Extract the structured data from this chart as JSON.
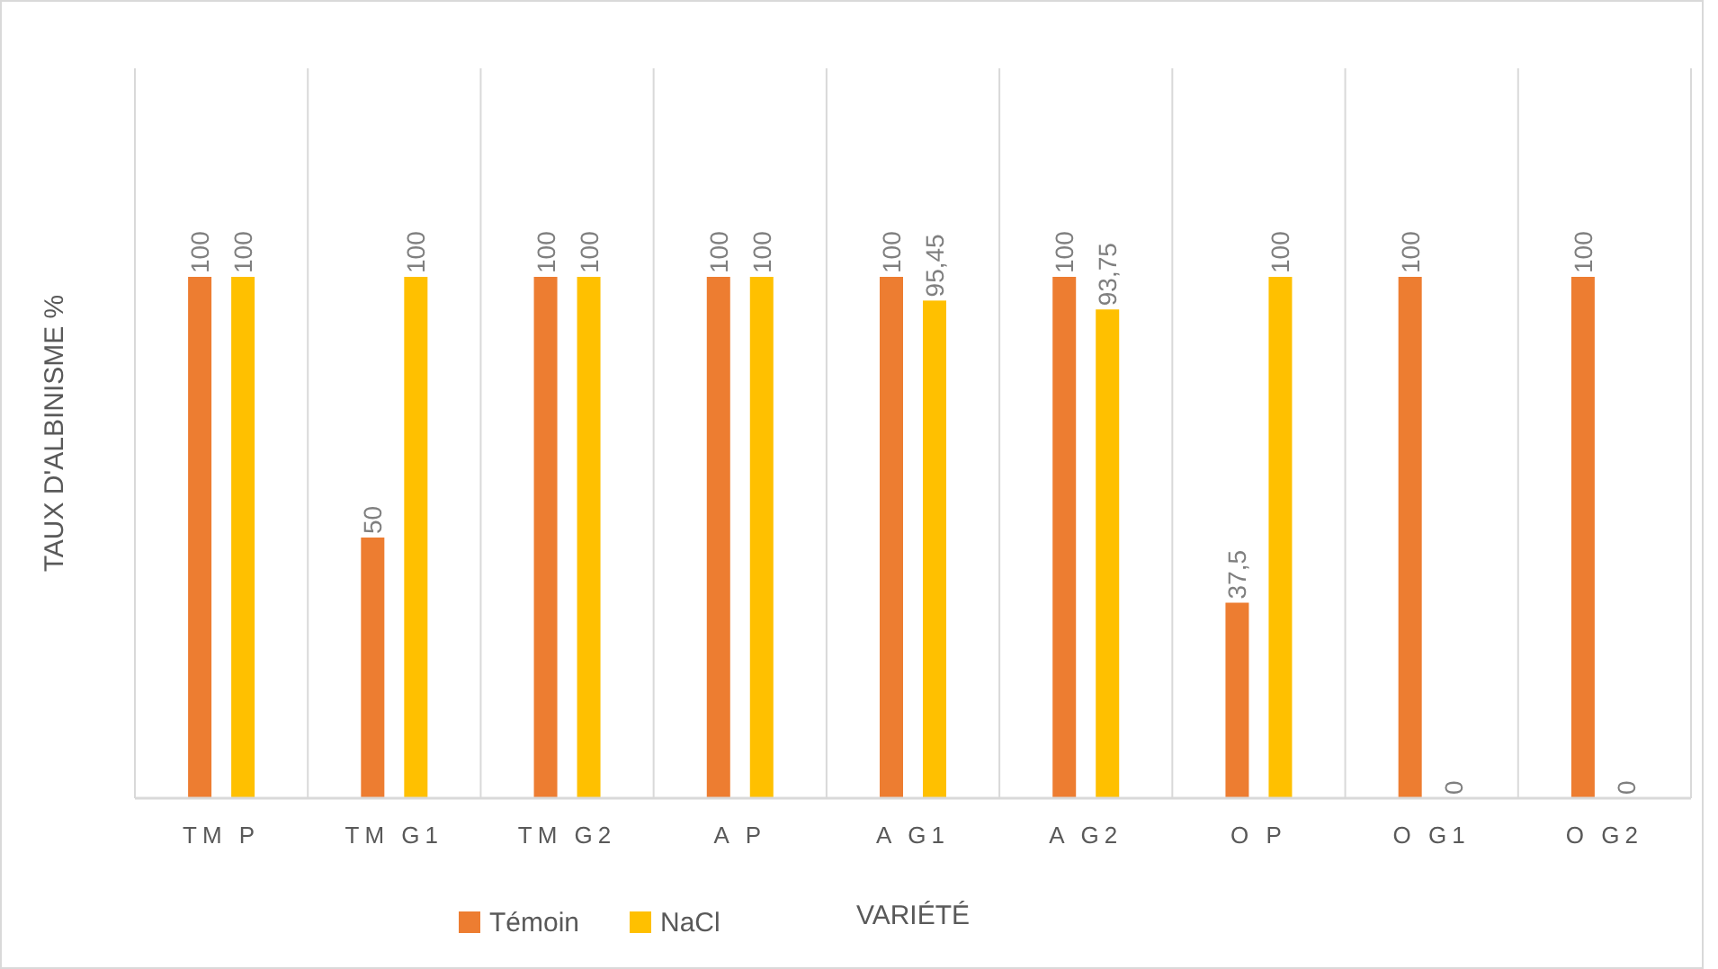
{
  "chart_data": {
    "type": "bar",
    "xlabel": "VARIÉTÉ",
    "ylabel": "TAUX D'ALBINISME %",
    "categories": [
      "TM P",
      "TM G1",
      "TM G2",
      "A P",
      "A G1",
      "A G2",
      "O P",
      "O G1",
      "O G2"
    ],
    "series": [
      {
        "name": "Témoin",
        "color": "#ed7d31",
        "values": [
          100,
          50,
          100,
          100,
          100,
          100,
          37.5,
          100,
          100
        ],
        "value_labels": [
          "100",
          "50",
          "100",
          "100",
          "100",
          "100",
          "37,5",
          "100",
          "100"
        ]
      },
      {
        "name": "NaCl",
        "color": "#ffc000",
        "values": [
          100,
          100,
          100,
          100,
          95.45,
          93.75,
          100,
          0,
          0
        ],
        "value_labels": [
          "100",
          "100",
          "100",
          "100",
          "95,45",
          "93,75",
          "100",
          "0",
          "0"
        ]
      }
    ],
    "ylim": [
      0,
      140
    ],
    "grid": "x",
    "legend": "bottom left",
    "data_labels": true,
    "tick_labels": "x"
  }
}
